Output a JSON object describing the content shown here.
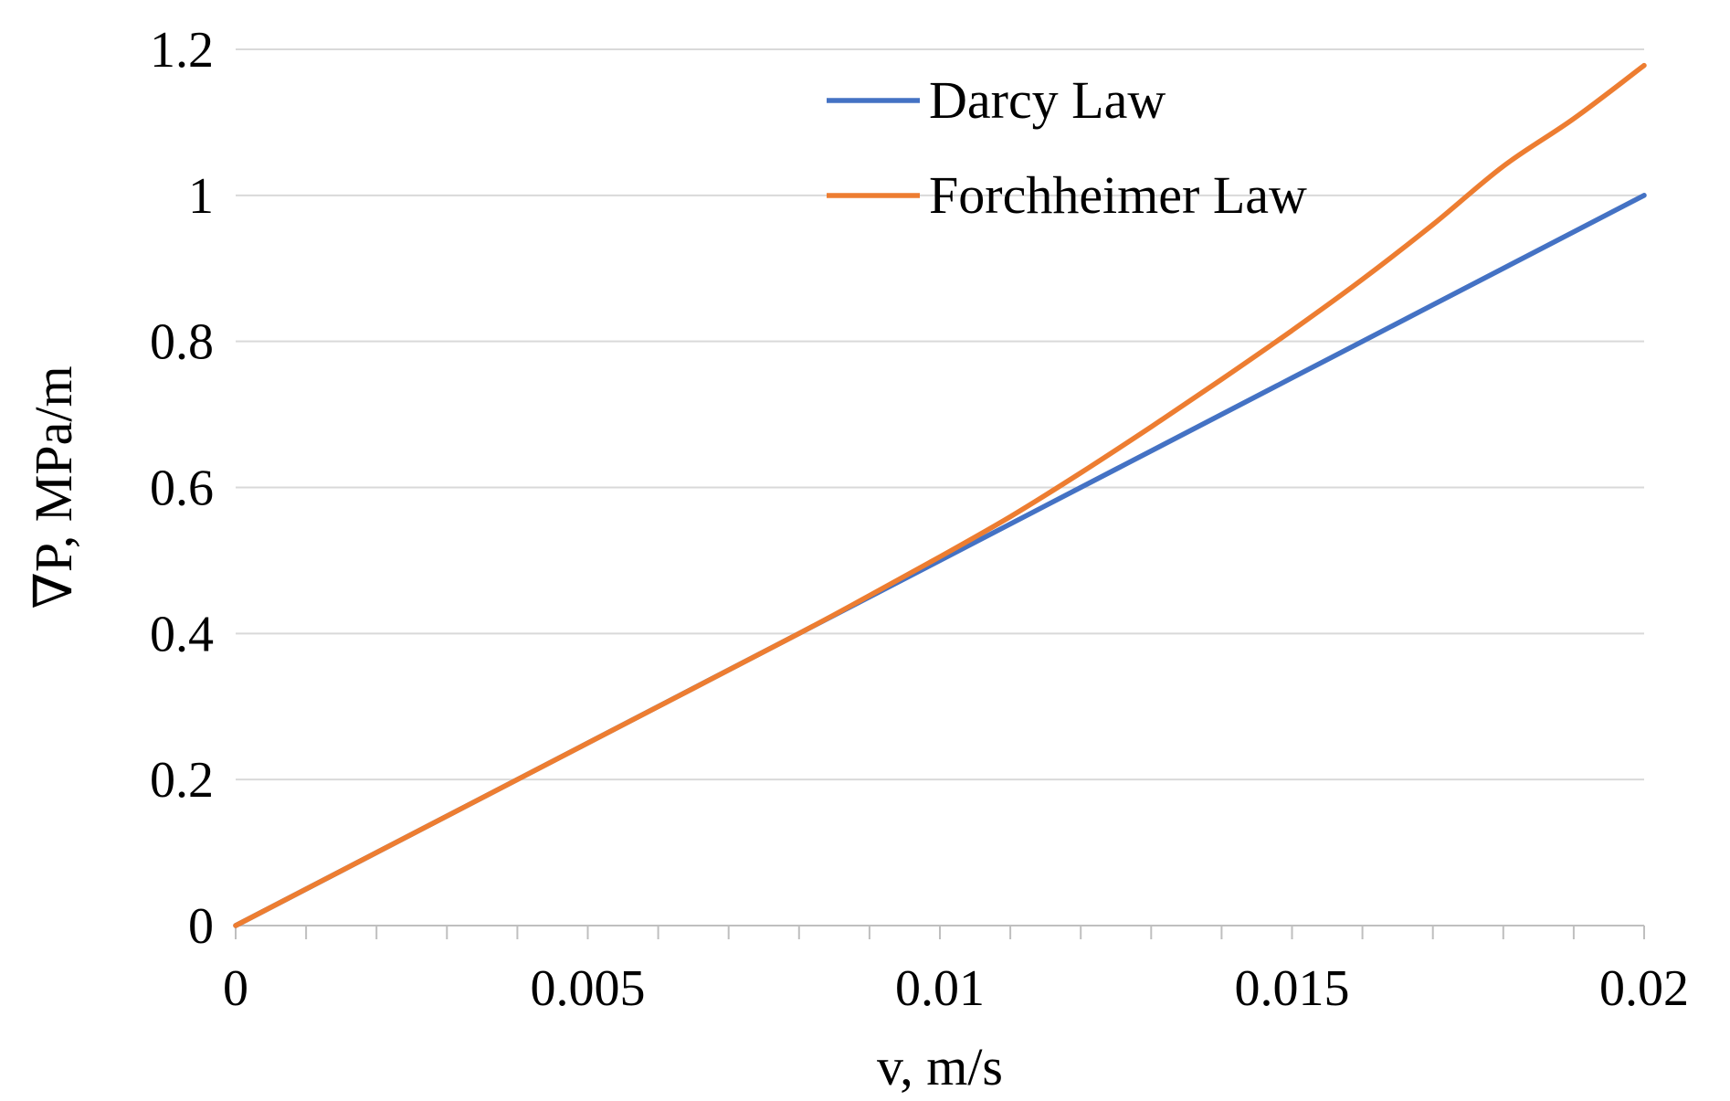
{
  "chart_data": {
    "type": "line",
    "xlabel": "v, m/s",
    "ylabel": "∇P, MPa/m",
    "xlim": [
      0,
      0.02
    ],
    "ylim": [
      0,
      1.2
    ],
    "x_ticks": [
      "0",
      "0.005",
      "0.01",
      "0.015",
      "0.02"
    ],
    "y_ticks": [
      "0",
      "0.2",
      "0.4",
      "0.6",
      "0.8",
      "1",
      "1.2"
    ],
    "grid": "horizontal",
    "legend_position": "top-right",
    "series": [
      {
        "name": "Darcy Law",
        "color": "#4472c4",
        "points": [
          [
            0,
            0
          ],
          [
            0.005,
            0.25
          ],
          [
            0.01,
            0.5
          ],
          [
            0.015,
            0.75
          ],
          [
            0.02,
            1.0
          ]
        ]
      },
      {
        "name": "Forchheimer Law",
        "color": "#ed7d31",
        "points": [
          [
            0,
            0
          ],
          [
            0.002,
            0.1
          ],
          [
            0.004,
            0.2
          ],
          [
            0.006,
            0.3
          ],
          [
            0.008,
            0.4
          ],
          [
            0.009,
            0.452
          ],
          [
            0.01,
            0.505
          ],
          [
            0.011,
            0.56
          ],
          [
            0.012,
            0.62
          ],
          [
            0.013,
            0.683
          ],
          [
            0.014,
            0.748
          ],
          [
            0.015,
            0.815
          ],
          [
            0.016,
            0.885
          ],
          [
            0.017,
            0.96
          ],
          [
            0.018,
            1.04
          ],
          [
            0.019,
            1.105
          ],
          [
            0.02,
            1.178
          ]
        ]
      }
    ]
  }
}
